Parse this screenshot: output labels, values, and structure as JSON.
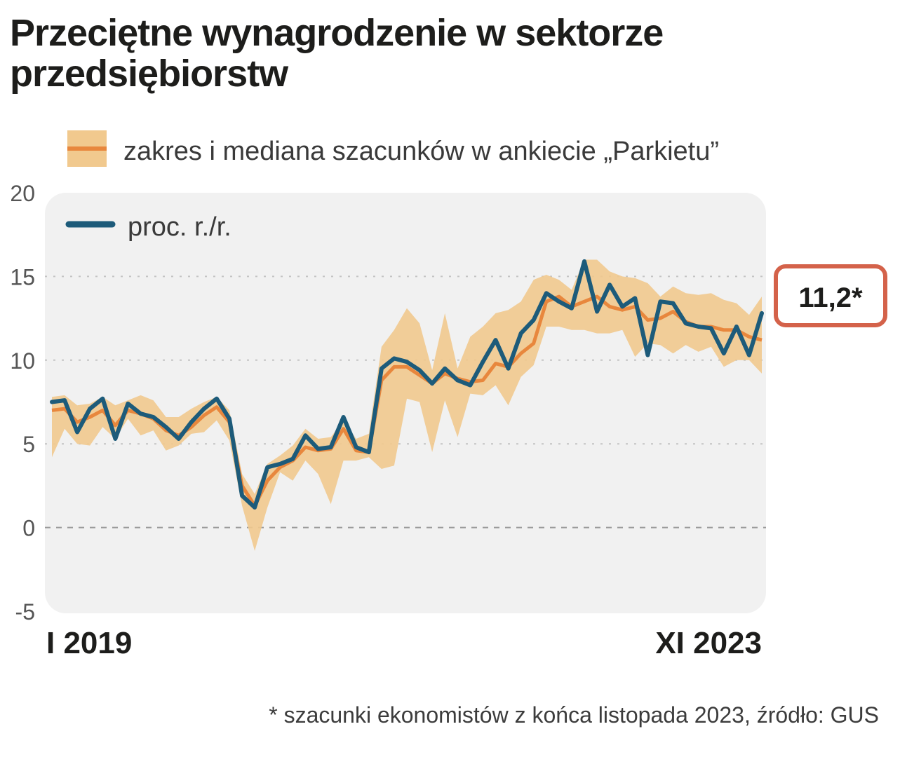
{
  "chart_data": {
    "type": "line",
    "title": "Przeciętne wynagrodzenie w sektorze przedsiębiorstw",
    "legend": {
      "range_label": "zakres i mediana szacunków w ankiecie „Parkietu”",
      "line_label": "proc. r./r."
    },
    "ylim": [
      -5,
      20
    ],
    "yticks": [
      20,
      15,
      10,
      5,
      0,
      -5
    ],
    "x_label_start": "I 2019",
    "x_label_end": "XI 2023",
    "highlight_value": "11,2*",
    "footnote": "* szacunki ekonomistów z końca listopada 2023, źródło: GUS",
    "series": [
      {
        "name": "proc. r./r.",
        "values": [
          7.5,
          7.6,
          5.7,
          7.1,
          7.7,
          5.3,
          7.4,
          6.8,
          6.6,
          6.0,
          5.3,
          6.3,
          7.1,
          7.7,
          6.5,
          1.9,
          1.2,
          3.6,
          3.8,
          4.1,
          5.5,
          4.7,
          4.8,
          6.6,
          4.8,
          4.5,
          9.5,
          10.1,
          9.9,
          9.4,
          8.6,
          9.5,
          8.8,
          8.5,
          9.9,
          11.2,
          9.5,
          11.6,
          12.4,
          14.0,
          13.5,
          13.1,
          15.9,
          12.9,
          14.5,
          13.2,
          13.7,
          10.3,
          13.5,
          13.4,
          12.2,
          12.0,
          11.9,
          10.4,
          12.0,
          10.3,
          12.8
        ]
      },
      {
        "name": "mediana szacunków",
        "values": [
          7.0,
          7.1,
          6.3,
          6.6,
          7.0,
          6.1,
          7.0,
          6.8,
          6.5,
          5.8,
          5.5,
          6.0,
          6.7,
          7.2,
          6.3,
          2.5,
          1.3,
          2.8,
          3.6,
          4.0,
          4.8,
          4.6,
          4.7,
          5.9,
          4.6,
          4.5,
          8.8,
          9.6,
          9.6,
          9.1,
          8.6,
          9.2,
          8.9,
          8.7,
          8.8,
          9.8,
          9.6,
          10.4,
          11.0,
          13.5,
          13.8,
          13.2,
          13.5,
          13.8,
          13.2,
          13.0,
          13.2,
          12.4,
          12.5,
          12.9,
          12.3,
          12.0,
          12.0,
          11.8,
          11.8,
          11.4,
          11.2
        ]
      },
      {
        "name": "zakres szacunków (min)",
        "values": [
          4.2,
          5.9,
          5.0,
          4.9,
          6.0,
          5.3,
          6.5,
          5.5,
          5.8,
          4.6,
          4.9,
          5.6,
          5.7,
          6.4,
          5.2,
          1.3,
          -1.4,
          1.2,
          3.3,
          2.8,
          4.0,
          3.2,
          1.4,
          4.0,
          4.0,
          4.2,
          3.5,
          3.7,
          7.7,
          7.5,
          4.5,
          7.6,
          5.4,
          8.0,
          7.9,
          8.5,
          7.3,
          9.0,
          9.7,
          12.0,
          12.0,
          11.8,
          11.8,
          11.6,
          11.6,
          11.8,
          10.2,
          11.0,
          10.9,
          10.4,
          10.9,
          10.5,
          10.8,
          9.6,
          10.0,
          10.0,
          9.2
        ]
      },
      {
        "name": "zakres szacunków (max)",
        "values": [
          7.8,
          7.9,
          7.3,
          7.4,
          7.8,
          7.3,
          7.6,
          7.9,
          7.6,
          6.6,
          6.6,
          7.1,
          7.5,
          7.8,
          7.0,
          3.2,
          2.0,
          3.8,
          4.3,
          4.9,
          5.9,
          5.3,
          5.4,
          6.4,
          5.3,
          5.6,
          10.8,
          11.8,
          13.1,
          12.2,
          9.4,
          12.8,
          9.5,
          11.4,
          12.0,
          12.8,
          13.0,
          13.5,
          14.8,
          15.1,
          14.8,
          14.2,
          16.0,
          16.0,
          15.3,
          15.0,
          14.9,
          14.6,
          13.8,
          14.4,
          14.0,
          13.9,
          14.0,
          13.6,
          13.4,
          12.7,
          13.8
        ]
      }
    ]
  },
  "colors": {
    "line": "#1d5b7a",
    "median": "#e8873d",
    "band": "#f1c98e",
    "plot_bg": "#f1f1f1",
    "highlight_border": "#d4624a"
  }
}
